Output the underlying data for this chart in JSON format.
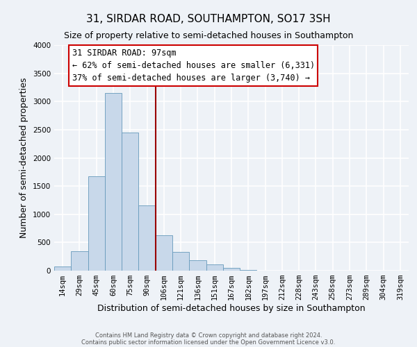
{
  "title": "31, SIRDAR ROAD, SOUTHAMPTON, SO17 3SH",
  "subtitle": "Size of property relative to semi-detached houses in Southampton",
  "xlabel": "Distribution of semi-detached houses by size in Southampton",
  "ylabel": "Number of semi-detached properties",
  "footer_line1": "Contains HM Land Registry data © Crown copyright and database right 2024.",
  "footer_line2": "Contains public sector information licensed under the Open Government Licence v3.0.",
  "bar_labels": [
    "14sqm",
    "29sqm",
    "45sqm",
    "60sqm",
    "75sqm",
    "90sqm",
    "106sqm",
    "121sqm",
    "136sqm",
    "151sqm",
    "167sqm",
    "182sqm",
    "197sqm",
    "212sqm",
    "228sqm",
    "243sqm",
    "258sqm",
    "273sqm",
    "289sqm",
    "304sqm",
    "319sqm"
  ],
  "bar_values": [
    70,
    350,
    1670,
    3150,
    2450,
    1160,
    630,
    330,
    185,
    110,
    55,
    10,
    5,
    3,
    2,
    1,
    0,
    0,
    0,
    0,
    0
  ],
  "bar_color": "#c8d8ea",
  "bar_edge_color": "#6699bb",
  "property_line_x": 5.5,
  "property_line_color": "#990000",
  "annotation_title": "31 SIRDAR ROAD: 97sqm",
  "annotation_line1": "← 62% of semi-detached houses are smaller (6,331)",
  "annotation_line2": "37% of semi-detached houses are larger (3,740) →",
  "annotation_box_facecolor": "#ffffff",
  "annotation_box_edgecolor": "#cc0000",
  "ylim": [
    0,
    4000
  ],
  "yticks": [
    0,
    500,
    1000,
    1500,
    2000,
    2500,
    3000,
    3500,
    4000
  ],
  "background_color": "#eef2f7",
  "plot_background_color": "#eef2f7",
  "grid_color": "#ffffff",
  "title_fontsize": 11,
  "subtitle_fontsize": 9,
  "axis_label_fontsize": 9,
  "tick_fontsize": 7.5,
  "annotation_fontsize": 8.5,
  "footer_fontsize": 6
}
